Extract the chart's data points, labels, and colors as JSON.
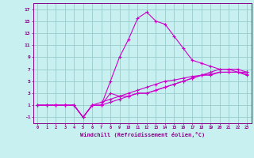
{
  "bg_color": "#c8f0f0",
  "line_color": "#cc00cc",
  "grid_color": "#99cccc",
  "xlabel": "Windchill (Refroidissement éolien,°C)",
  "xlabel_color": "#880088",
  "tick_color": "#880088",
  "xlim": [
    -0.5,
    23.5
  ],
  "ylim": [
    -2,
    18
  ],
  "xticks": [
    0,
    1,
    2,
    3,
    4,
    5,
    6,
    7,
    8,
    9,
    10,
    11,
    12,
    13,
    14,
    15,
    16,
    17,
    18,
    19,
    20,
    21,
    22,
    23
  ],
  "yticks": [
    -1,
    1,
    3,
    5,
    7,
    9,
    11,
    13,
    15,
    17
  ],
  "series": [
    [
      1,
      1,
      1,
      1,
      1,
      -1,
      1,
      1,
      5,
      9,
      12,
      15.5,
      16.5,
      15,
      14.5,
      12.5,
      10.5,
      8.5,
      8,
      7.5,
      7,
      7,
      6.5,
      6.5
    ],
    [
      1,
      1,
      1,
      1,
      1,
      -1,
      1,
      1,
      3,
      2.5,
      2.5,
      3,
      3,
      3.5,
      4,
      4.5,
      5,
      5.5,
      6,
      6.5,
      7,
      7,
      7,
      6.5
    ],
    [
      1,
      1,
      1,
      1,
      1,
      -1,
      1,
      1.5,
      2,
      2.5,
      3,
      3.5,
      4,
      4.5,
      5,
      5.2,
      5.5,
      5.8,
      6,
      6.2,
      6.5,
      6.5,
      6.5,
      6.2
    ],
    [
      1,
      1,
      1,
      1,
      1,
      -1,
      1,
      1,
      1.5,
      2,
      2.5,
      3,
      3,
      3.5,
      4,
      4.5,
      5,
      5.5,
      6,
      6,
      6.5,
      6.5,
      6.5,
      6.0
    ]
  ]
}
